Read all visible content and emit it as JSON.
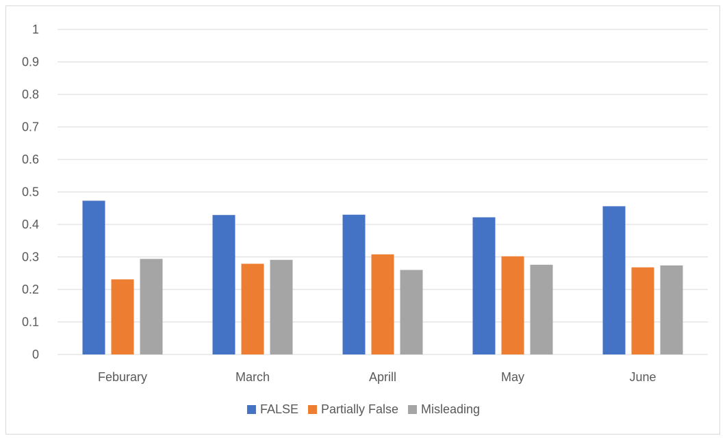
{
  "chart_data": {
    "type": "bar",
    "title": "",
    "xlabel": "",
    "ylabel": "",
    "categories": [
      "Feburary",
      "March",
      "Aprill",
      "May",
      "June"
    ],
    "series": [
      {
        "name": "FALSE",
        "color": "#4472C4",
        "values": [
          0.473,
          0.429,
          0.43,
          0.422,
          0.456
        ]
      },
      {
        "name": "Partially False",
        "color": "#ED7D31",
        "values": [
          0.231,
          0.279,
          0.308,
          0.302,
          0.268
        ]
      },
      {
        "name": "Misleading",
        "color": "#A5A5A5",
        "values": [
          0.294,
          0.291,
          0.26,
          0.276,
          0.274
        ]
      }
    ],
    "ylim": [
      0,
      1
    ],
    "yticks": [
      "0",
      "0.1",
      "0.2",
      "0.3",
      "0.4",
      "0.5",
      "0.6",
      "0.7",
      "0.8",
      "0.9",
      "1"
    ],
    "grid": true,
    "legend_position": "bottom"
  }
}
